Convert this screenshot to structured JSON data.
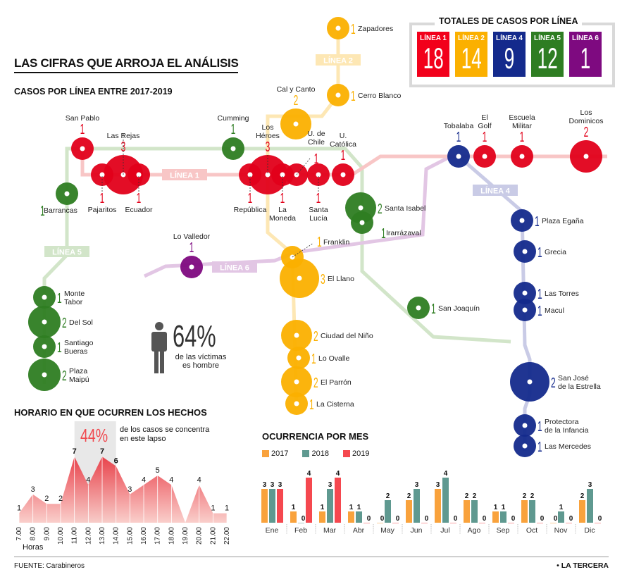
{
  "header": {
    "title": "LAS CIFRAS QUE ARROJA EL ANÁLISIS",
    "subtitle": "CASOS POR LÍNEA ENTRE 2017-2019"
  },
  "totals": {
    "title": "TOTALES DE CASOS POR LÍNEA",
    "items": [
      {
        "label": "LÍNEA 1",
        "value": "18",
        "color": "#f2001b"
      },
      {
        "label": "LÍNEA 2",
        "value": "14",
        "color": "#fbb000"
      },
      {
        "label": "LÍNEA 4",
        "value": "9",
        "color": "#142a8c"
      },
      {
        "label": "LÍNEA 5",
        "value": "12",
        "color": "#2e7d22"
      },
      {
        "label": "LÍNEA 6",
        "value": "1",
        "color": "#7e0a80"
      }
    ]
  },
  "lines": {
    "L1": {
      "label": "LÍNEA 1",
      "color": "#e2001a",
      "light": "#f8c6c6"
    },
    "L2": {
      "label": "LÍNEA 2",
      "color": "#fbb000",
      "light": "#fde7b4"
    },
    "L4": {
      "label": "LÍNEA 4",
      "color": "#142a8c",
      "light": "#c9cbe6"
    },
    "L5": {
      "label": "LÍNEA 5",
      "color": "#2e7d22",
      "light": "#d2e5c9"
    },
    "L6": {
      "label": "LÍNEA 6",
      "color": "#7e0a80",
      "light": "#e2c6e4"
    }
  },
  "stations": [
    {
      "name": "San Pablo",
      "count": 1,
      "line": "L1"
    },
    {
      "name": "Pajaritos",
      "count": 1,
      "line": "L1"
    },
    {
      "name": "Las Rejas",
      "count": 3,
      "line": "L1"
    },
    {
      "name": "Ecuador",
      "count": 1,
      "line": "L1"
    },
    {
      "name": "República",
      "count": 1,
      "line": "L1"
    },
    {
      "name": "Los Héroes",
      "count": 3,
      "line": "L1"
    },
    {
      "name": "La Moneda",
      "count": 1,
      "line": "L1"
    },
    {
      "name": "U. de Chile",
      "count": 1,
      "line": "L1"
    },
    {
      "name": "Santa Lucía",
      "count": 1,
      "line": "L1"
    },
    {
      "name": "U. Católica",
      "count": 1,
      "line": "L1"
    },
    {
      "name": "El Golf",
      "count": 1,
      "line": "L1"
    },
    {
      "name": "Escuela Militar",
      "count": 1,
      "line": "L1"
    },
    {
      "name": "Los Dominicos",
      "count": 2,
      "line": "L1"
    },
    {
      "name": "Zapadores",
      "count": 1,
      "line": "L2"
    },
    {
      "name": "Cerro Blanco",
      "count": 1,
      "line": "L2"
    },
    {
      "name": "Cal y Canto",
      "count": 2,
      "line": "L2"
    },
    {
      "name": "Franklin",
      "count": 1,
      "line": "L2"
    },
    {
      "name": "El Llano",
      "count": 3,
      "line": "L2"
    },
    {
      "name": "Ciudad del Niño",
      "count": 2,
      "line": "L2"
    },
    {
      "name": "Lo Ovalle",
      "count": 1,
      "line": "L2"
    },
    {
      "name": "El Parrón",
      "count": 2,
      "line": "L2"
    },
    {
      "name": "La Cisterna",
      "count": 1,
      "line": "L2"
    },
    {
      "name": "Tobalaba",
      "count": 1,
      "line": "L4"
    },
    {
      "name": "Plaza Egaña",
      "count": 1,
      "line": "L4"
    },
    {
      "name": "Grecia",
      "count": 1,
      "line": "L4"
    },
    {
      "name": "Las Torres",
      "count": 1,
      "line": "L4"
    },
    {
      "name": "Macul",
      "count": 1,
      "line": "L4"
    },
    {
      "name": "San José de la Estrella",
      "count": 2,
      "line": "L4"
    },
    {
      "name": "Protectora de la Infancia",
      "count": 1,
      "line": "L4"
    },
    {
      "name": "Las Mercedes",
      "count": 1,
      "line": "L4"
    },
    {
      "name": "Barrancas",
      "count": 1,
      "line": "L5"
    },
    {
      "name": "Cumming",
      "count": 1,
      "line": "L5"
    },
    {
      "name": "Santa Isabel",
      "count": 2,
      "line": "L5"
    },
    {
      "name": "Irarrázaval",
      "count": 1,
      "line": "L5"
    },
    {
      "name": "San Joaquín",
      "count": 1,
      "line": "L5"
    },
    {
      "name": "Monte Tabor",
      "count": 1,
      "line": "L5"
    },
    {
      "name": "Del Sol",
      "count": 2,
      "line": "L5"
    },
    {
      "name": "Santiago Bueras",
      "count": 1,
      "line": "L5"
    },
    {
      "name": "Plaza Maipú",
      "count": 2,
      "line": "L5"
    },
    {
      "name": "Lo Valledor",
      "count": 1,
      "line": "L6"
    }
  ],
  "stat": {
    "value": "64%",
    "text": "de las víctimas es hombre",
    "icon": "person-icon"
  },
  "chart_data": [
    {
      "type": "area",
      "title": "HORARIO EN QUE OCURREN LOS HECHOS",
      "xlabel": "Horas",
      "categories": [
        "7:00",
        "8:00",
        "9:00",
        "10:00",
        "11:00",
        "12:00",
        "13:00",
        "14:00",
        "15:00",
        "16:00",
        "17:00",
        "18:00",
        "19:00",
        "20:00",
        "21:00",
        "22:00"
      ],
      "values": [
        1,
        3,
        2,
        2,
        7,
        4,
        7,
        6,
        3,
        4,
        5,
        4,
        0,
        4,
        1,
        1
      ],
      "highlight": {
        "from": "11:00",
        "to": "14:00",
        "value": "44%",
        "text": "de los casos se concentra en este lapso"
      },
      "color": "#f0494f"
    },
    {
      "type": "bar",
      "title": "OCURRENCIA POR MES",
      "categories": [
        "Ene",
        "Feb",
        "Mar",
        "Abr",
        "May",
        "Jun",
        "Jul",
        "Ago",
        "Sep",
        "Oct",
        "Nov",
        "Dic"
      ],
      "series": [
        {
          "name": "2017",
          "color": "#f9a23c",
          "values": [
            3,
            1,
            1,
            1,
            0,
            2,
            3,
            2,
            1,
            2,
            0,
            2
          ]
        },
        {
          "name": "2018",
          "color": "#5f9990",
          "values": [
            3,
            0,
            3,
            1,
            2,
            3,
            4,
            2,
            1,
            2,
            1,
            3
          ]
        },
        {
          "name": "2019",
          "color": "#f5484f",
          "values": [
            3,
            4,
            4,
            0,
            0,
            0,
            0,
            0,
            0,
            0,
            0,
            0
          ]
        }
      ],
      "legend": "top-left"
    }
  ],
  "footer": {
    "source": "FUENTE: Carabineros",
    "brand": "• LA TERCERA"
  }
}
